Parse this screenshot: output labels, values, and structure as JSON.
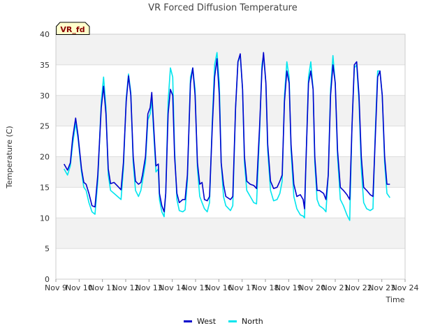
{
  "chart_data": {
    "type": "line",
    "title": "VR Forced Diffusion Temperature",
    "xlabel": "Time",
    "ylabel": "Temperature (C)",
    "badge": "VR_fd",
    "ylim": [
      0,
      40
    ],
    "yticks": [
      0,
      5,
      10,
      15,
      20,
      25,
      30,
      35,
      40
    ],
    "xlim": [
      9,
      24
    ],
    "xticks": [
      {
        "v": 9,
        "label": "Nov 9"
      },
      {
        "v": 10,
        "label": "Nov 10"
      },
      {
        "v": 11,
        "label": "Nov 11"
      },
      {
        "v": 12,
        "label": "Nov 12"
      },
      {
        "v": 13,
        "label": "Nov 13"
      },
      {
        "v": 14,
        "label": "Nov 14"
      },
      {
        "v": 15,
        "label": "Nov 15"
      },
      {
        "v": 16,
        "label": "Nov 16"
      },
      {
        "v": 17,
        "label": "Nov 17"
      },
      {
        "v": 18,
        "label": "Nov 18"
      },
      {
        "v": 19,
        "label": "Nov 19"
      },
      {
        "v": 20,
        "label": "Nov 20"
      },
      {
        "v": 21,
        "label": "Nov 21"
      },
      {
        "v": 22,
        "label": "Nov 22"
      },
      {
        "v": 23,
        "label": "Nov 23"
      },
      {
        "v": 24,
        "label": "Nov 24"
      }
    ],
    "grid": true,
    "legend_position": "bottom-center",
    "series": [
      {
        "name": "West",
        "color": "#0000cc",
        "points": [
          [
            9.35,
            18.8
          ],
          [
            9.5,
            17.8
          ],
          [
            9.62,
            19.0
          ],
          [
            9.72,
            23.0
          ],
          [
            9.85,
            26.3
          ],
          [
            9.95,
            23.5
          ],
          [
            10.1,
            18.0
          ],
          [
            10.2,
            15.8
          ],
          [
            10.3,
            15.5
          ],
          [
            10.42,
            14.0
          ],
          [
            10.55,
            12.0
          ],
          [
            10.68,
            11.8
          ],
          [
            10.8,
            17.0
          ],
          [
            10.95,
            28.0
          ],
          [
            11.05,
            31.5
          ],
          [
            11.15,
            27.0
          ],
          [
            11.25,
            18.0
          ],
          [
            11.35,
            15.6
          ],
          [
            11.5,
            15.8
          ],
          [
            11.65,
            15.2
          ],
          [
            11.8,
            14.6
          ],
          [
            11.9,
            19.0
          ],
          [
            12.02,
            29.0
          ],
          [
            12.12,
            33.2
          ],
          [
            12.22,
            30.0
          ],
          [
            12.32,
            20.0
          ],
          [
            12.42,
            16.0
          ],
          [
            12.55,
            15.5
          ],
          [
            12.65,
            15.8
          ],
          [
            12.72,
            17.0
          ],
          [
            12.85,
            20.0
          ],
          [
            12.95,
            27.0
          ],
          [
            13.05,
            28.0
          ],
          [
            13.12,
            30.5
          ],
          [
            13.2,
            25.0
          ],
          [
            13.3,
            18.5
          ],
          [
            13.4,
            18.8
          ],
          [
            13.45,
            14.0
          ],
          [
            13.55,
            12.0
          ],
          [
            13.65,
            11.0
          ],
          [
            13.72,
            14.0
          ],
          [
            13.82,
            27.0
          ],
          [
            13.92,
            31.0
          ],
          [
            14.02,
            30.0
          ],
          [
            14.1,
            20.0
          ],
          [
            14.2,
            14.0
          ],
          [
            14.3,
            12.5
          ],
          [
            14.45,
            13.0
          ],
          [
            14.55,
            13.0
          ],
          [
            14.65,
            17.0
          ],
          [
            14.78,
            32.0
          ],
          [
            14.88,
            34.5
          ],
          [
            14.98,
            30.0
          ],
          [
            15.08,
            19.0
          ],
          [
            15.18,
            15.5
          ],
          [
            15.28,
            15.8
          ],
          [
            15.38,
            13.0
          ],
          [
            15.5,
            12.8
          ],
          [
            15.6,
            13.5
          ],
          [
            15.72,
            25.0
          ],
          [
            15.82,
            33.0
          ],
          [
            15.92,
            36.0
          ],
          [
            16.02,
            30.0
          ],
          [
            16.1,
            19.0
          ],
          [
            16.2,
            15.5
          ],
          [
            16.3,
            13.5
          ],
          [
            16.5,
            13.0
          ],
          [
            16.6,
            13.5
          ],
          [
            16.72,
            28.0
          ],
          [
            16.82,
            35.5
          ],
          [
            16.92,
            36.8
          ],
          [
            17.02,
            31.0
          ],
          [
            17.1,
            20.0
          ],
          [
            17.2,
            16.0
          ],
          [
            17.35,
            15.5
          ],
          [
            17.5,
            15.3
          ],
          [
            17.62,
            14.8
          ],
          [
            17.75,
            25.0
          ],
          [
            17.85,
            34.0
          ],
          [
            17.92,
            37.0
          ],
          [
            18.02,
            32.0
          ],
          [
            18.1,
            22.0
          ],
          [
            18.22,
            16.0
          ],
          [
            18.35,
            14.8
          ],
          [
            18.5,
            15.0
          ],
          [
            18.62,
            16.0
          ],
          [
            18.72,
            17.0
          ],
          [
            18.82,
            29.0
          ],
          [
            18.92,
            34.0
          ],
          [
            19.02,
            32.0
          ],
          [
            19.1,
            22.0
          ],
          [
            19.22,
            15.5
          ],
          [
            19.35,
            13.5
          ],
          [
            19.5,
            13.8
          ],
          [
            19.62,
            13.0
          ],
          [
            19.68,
            11.5
          ],
          [
            19.75,
            20.0
          ],
          [
            19.85,
            32.0
          ],
          [
            19.95,
            34.0
          ],
          [
            20.05,
            31.0
          ],
          [
            20.12,
            20.0
          ],
          [
            20.22,
            14.5
          ],
          [
            20.32,
            14.5
          ],
          [
            20.5,
            14.0
          ],
          [
            20.6,
            13.0
          ],
          [
            20.7,
            17.0
          ],
          [
            20.8,
            30.0
          ],
          [
            20.9,
            35.0
          ],
          [
            21.0,
            32.0
          ],
          [
            21.1,
            21.0
          ],
          [
            21.22,
            15.0
          ],
          [
            21.35,
            14.5
          ],
          [
            21.5,
            13.8
          ],
          [
            21.62,
            13.0
          ],
          [
            21.72,
            25.0
          ],
          [
            21.82,
            35.0
          ],
          [
            21.92,
            35.5
          ],
          [
            22.02,
            30.0
          ],
          [
            22.12,
            20.0
          ],
          [
            22.22,
            15.0
          ],
          [
            22.35,
            14.5
          ],
          [
            22.5,
            13.8
          ],
          [
            22.62,
            13.5
          ],
          [
            22.72,
            23.0
          ],
          [
            22.82,
            33.0
          ],
          [
            22.92,
            34.0
          ],
          [
            23.02,
            30.0
          ],
          [
            23.12,
            20.0
          ],
          [
            23.22,
            15.5
          ],
          [
            23.35,
            15.5
          ]
        ]
      },
      {
        "name": "North",
        "color": "#00e5ee",
        "points": [
          [
            9.35,
            18.0
          ],
          [
            9.5,
            17.0
          ],
          [
            9.62,
            18.5
          ],
          [
            9.72,
            22.0
          ],
          [
            9.85,
            25.5
          ],
          [
            9.95,
            23.0
          ],
          [
            10.1,
            17.5
          ],
          [
            10.2,
            15.0
          ],
          [
            10.3,
            14.5
          ],
          [
            10.42,
            12.5
          ],
          [
            10.55,
            11.0
          ],
          [
            10.68,
            10.6
          ],
          [
            10.8,
            16.0
          ],
          [
            10.95,
            29.0
          ],
          [
            11.05,
            33.0
          ],
          [
            11.15,
            28.0
          ],
          [
            11.25,
            17.0
          ],
          [
            11.35,
            14.5
          ],
          [
            11.5,
            14.0
          ],
          [
            11.65,
            13.5
          ],
          [
            11.8,
            13.0
          ],
          [
            11.9,
            18.0
          ],
          [
            12.02,
            29.5
          ],
          [
            12.12,
            33.5
          ],
          [
            12.22,
            30.5
          ],
          [
            12.32,
            19.0
          ],
          [
            12.42,
            14.5
          ],
          [
            12.55,
            13.5
          ],
          [
            12.65,
            14.5
          ],
          [
            12.72,
            16.0
          ],
          [
            12.85,
            19.0
          ],
          [
            12.95,
            26.0
          ],
          [
            13.05,
            27.0
          ],
          [
            13.12,
            29.5
          ],
          [
            13.2,
            24.0
          ],
          [
            13.3,
            17.5
          ],
          [
            13.4,
            18.0
          ],
          [
            13.45,
            13.0
          ],
          [
            13.55,
            11.0
          ],
          [
            13.65,
            10.2
          ],
          [
            13.72,
            14.0
          ],
          [
            13.82,
            29.0
          ],
          [
            13.92,
            34.5
          ],
          [
            14.02,
            33.0
          ],
          [
            14.1,
            21.0
          ],
          [
            14.2,
            13.0
          ],
          [
            14.3,
            11.2
          ],
          [
            14.45,
            11.0
          ],
          [
            14.55,
            11.3
          ],
          [
            14.65,
            16.0
          ],
          [
            14.78,
            33.0
          ],
          [
            14.88,
            34.5
          ],
          [
            14.98,
            31.0
          ],
          [
            15.08,
            18.0
          ],
          [
            15.18,
            13.5
          ],
          [
            15.28,
            12.5
          ],
          [
            15.38,
            11.5
          ],
          [
            15.5,
            11.0
          ],
          [
            15.6,
            12.5
          ],
          [
            15.72,
            26.0
          ],
          [
            15.82,
            35.0
          ],
          [
            15.92,
            37.0
          ],
          [
            16.02,
            32.0
          ],
          [
            16.1,
            19.0
          ],
          [
            16.2,
            13.5
          ],
          [
            16.3,
            12.0
          ],
          [
            16.5,
            11.2
          ],
          [
            16.6,
            12.0
          ],
          [
            16.72,
            28.0
          ],
          [
            16.82,
            35.5
          ],
          [
            16.92,
            36.5
          ],
          [
            17.02,
            31.0
          ],
          [
            17.1,
            19.0
          ],
          [
            17.2,
            14.5
          ],
          [
            17.35,
            13.5
          ],
          [
            17.5,
            12.5
          ],
          [
            17.62,
            12.3
          ],
          [
            17.75,
            24.0
          ],
          [
            17.85,
            35.0
          ],
          [
            17.92,
            36.5
          ],
          [
            18.02,
            32.0
          ],
          [
            18.1,
            21.0
          ],
          [
            18.22,
            14.5
          ],
          [
            18.35,
            12.8
          ],
          [
            18.5,
            13.0
          ],
          [
            18.62,
            14.0
          ],
          [
            18.72,
            16.0
          ],
          [
            18.82,
            30.0
          ],
          [
            18.92,
            35.5
          ],
          [
            19.02,
            33.0
          ],
          [
            19.1,
            21.0
          ],
          [
            19.22,
            13.5
          ],
          [
            19.35,
            11.5
          ],
          [
            19.5,
            10.5
          ],
          [
            19.62,
            10.3
          ],
          [
            19.68,
            10.0
          ],
          [
            19.75,
            20.0
          ],
          [
            19.85,
            33.0
          ],
          [
            19.95,
            35.5
          ],
          [
            20.05,
            31.0
          ],
          [
            20.12,
            19.0
          ],
          [
            20.22,
            13.0
          ],
          [
            20.32,
            12.0
          ],
          [
            20.5,
            11.5
          ],
          [
            20.6,
            11.0
          ],
          [
            20.7,
            17.0
          ],
          [
            20.8,
            31.0
          ],
          [
            20.9,
            36.5
          ],
          [
            21.0,
            32.0
          ],
          [
            21.1,
            20.0
          ],
          [
            21.22,
            13.0
          ],
          [
            21.35,
            12.0
          ],
          [
            21.5,
            10.5
          ],
          [
            21.62,
            9.6
          ],
          [
            21.72,
            25.0
          ],
          [
            21.82,
            34.5
          ],
          [
            21.92,
            35.0
          ],
          [
            22.02,
            29.0
          ],
          [
            22.12,
            18.0
          ],
          [
            22.22,
            12.5
          ],
          [
            22.35,
            11.5
          ],
          [
            22.5,
            11.2
          ],
          [
            22.62,
            11.5
          ],
          [
            22.72,
            24.0
          ],
          [
            22.82,
            34.0
          ],
          [
            22.92,
            34.0
          ],
          [
            23.02,
            30.0
          ],
          [
            23.12,
            19.0
          ],
          [
            23.22,
            14.0
          ],
          [
            23.35,
            13.3
          ]
        ]
      }
    ]
  }
}
